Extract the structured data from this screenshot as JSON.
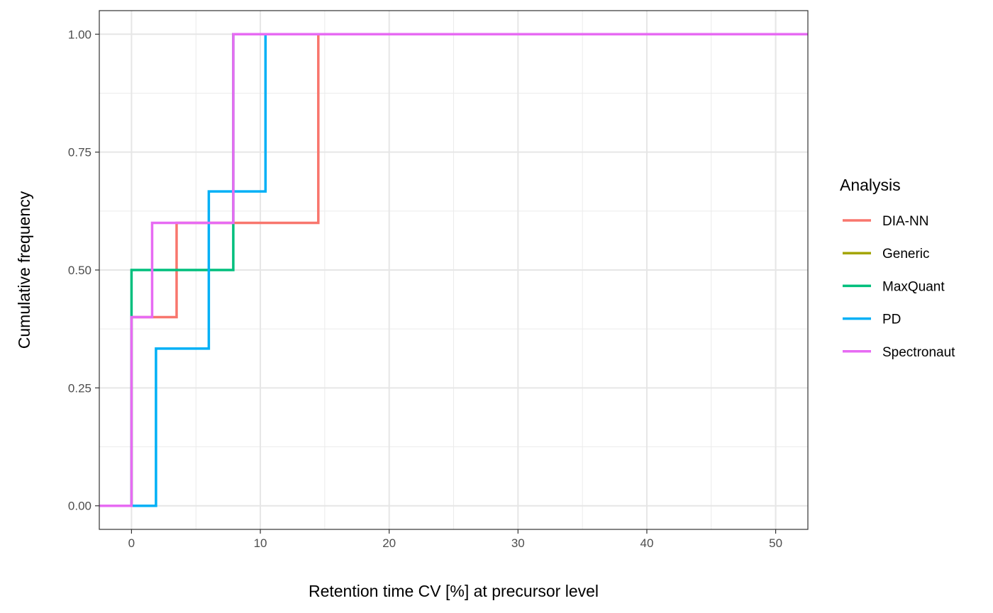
{
  "chart_data": {
    "type": "line",
    "step": true,
    "xlabel": "Retention time CV [%] at precursor level",
    "ylabel": "Cumulative frequency",
    "xlim": [
      -2.5,
      52.5
    ],
    "ylim": [
      -0.05,
      1.05
    ],
    "x_ticks": [
      0,
      10,
      20,
      30,
      40,
      50
    ],
    "x_tick_labels": [
      "0",
      "10",
      "20",
      "30",
      "40",
      "50"
    ],
    "y_ticks": [
      0,
      0.25,
      0.5,
      0.75,
      1
    ],
    "y_tick_labels": [
      "0.00",
      "0.25",
      "0.50",
      "0.75",
      "1.00"
    ],
    "grid": true,
    "legend": {
      "title": "Analysis",
      "position": "right"
    },
    "series": [
      {
        "name": "DIA-NN",
        "color": "#F8766D",
        "points": [
          [
            -2.5,
            0
          ],
          [
            0,
            0
          ],
          [
            0,
            0.4
          ],
          [
            3.5,
            0.4
          ],
          [
            3.5,
            0.6
          ],
          [
            14.5,
            0.6
          ],
          [
            14.5,
            1.0
          ],
          [
            52.5,
            1.0
          ]
        ]
      },
      {
        "name": "Generic",
        "color": "#A3A500",
        "points": []
      },
      {
        "name": "MaxQuant",
        "color": "#00BF7D",
        "points": [
          [
            -2.5,
            0
          ],
          [
            0,
            0
          ],
          [
            0,
            0.5
          ],
          [
            7.9,
            0.5
          ],
          [
            7.9,
            1.0
          ],
          [
            52.5,
            1.0
          ]
        ]
      },
      {
        "name": "PD",
        "color": "#00B0F6",
        "points": [
          [
            -2.5,
            0
          ],
          [
            1.9,
            0
          ],
          [
            1.9,
            0.3333
          ],
          [
            6.0,
            0.3333
          ],
          [
            6.0,
            0.6667
          ],
          [
            10.4,
            0.6667
          ],
          [
            10.4,
            1.0
          ],
          [
            52.5,
            1.0
          ]
        ]
      },
      {
        "name": "Spectronaut",
        "color": "#E76BF3",
        "points": [
          [
            -2.5,
            0
          ],
          [
            0,
            0
          ],
          [
            0,
            0.4
          ],
          [
            1.6,
            0.4
          ],
          [
            1.6,
            0.6
          ],
          [
            7.9,
            0.6
          ],
          [
            7.9,
            1.0
          ],
          [
            52.5,
            1.0
          ]
        ]
      }
    ]
  }
}
